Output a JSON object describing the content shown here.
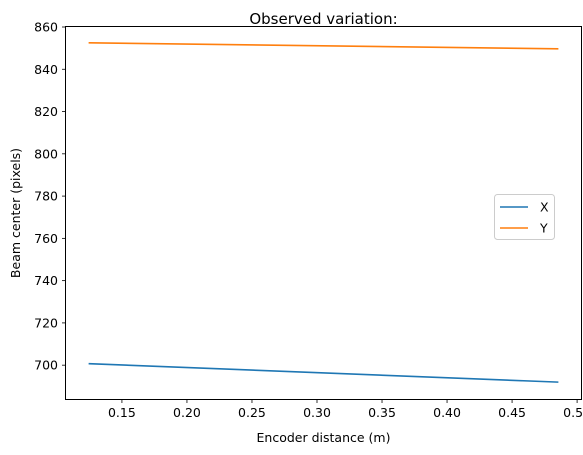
{
  "chart_data": {
    "type": "line",
    "title": "Observed variation:",
    "xlabel": "Encoder distance (m)",
    "ylabel": "Beam center (pixels)",
    "xlim": [
      0.107,
      0.503
    ],
    "ylim": [
      684,
      860
    ],
    "xticks": [
      0.15,
      0.2,
      0.25,
      0.3,
      0.35,
      0.4,
      0.45,
      0.5
    ],
    "xtick_labels": [
      "0.15",
      "0.20",
      "0.25",
      "0.30",
      "0.35",
      "0.40",
      "0.45",
      "0.50"
    ],
    "yticks": [
      700,
      720,
      740,
      760,
      780,
      800,
      820,
      840,
      860
    ],
    "ytick_labels": [
      "700",
      "720",
      "740",
      "760",
      "780",
      "800",
      "820",
      "840",
      "860"
    ],
    "grid": false,
    "legend_position": "center-right",
    "series": [
      {
        "name": "X",
        "color": "#1f77b4",
        "x": [
          0.125,
          0.485
        ],
        "y": [
          700.7,
          692.0
        ]
      },
      {
        "name": "Y",
        "color": "#ff7f0e",
        "x": [
          0.125,
          0.485
        ],
        "y": [
          852.5,
          849.7
        ]
      }
    ]
  }
}
